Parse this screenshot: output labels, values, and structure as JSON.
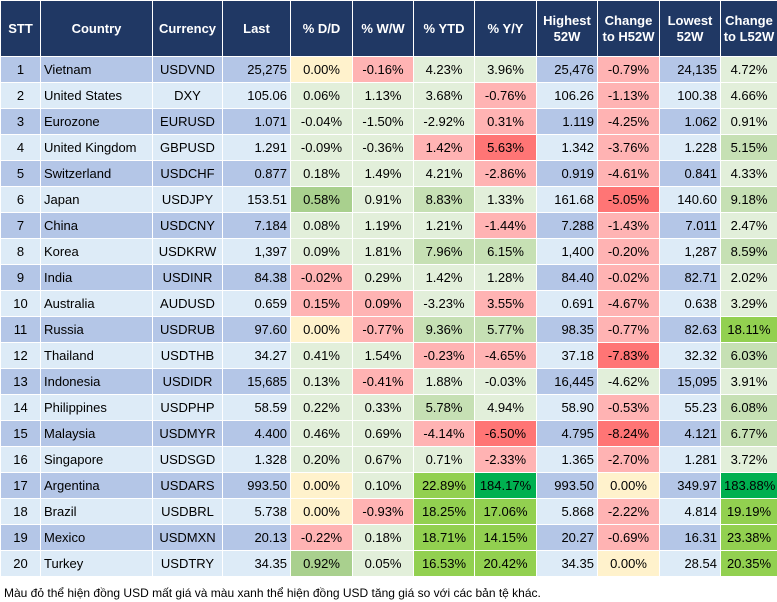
{
  "colors": {
    "header": "#203864",
    "odd_row": "#b4c6e7",
    "even_row": "#ddebf7",
    "y": "#fff2cc",
    "r": "#ffb3b3",
    "R": "#ff7575",
    "g": "#e2efda",
    "G": "#c6e0b4",
    "A": "#a9d08e",
    "B": "#92d050",
    "D": "#00b050"
  },
  "headers": [
    "STT",
    "Country",
    "Currency",
    "Last",
    "% D/D",
    "% W/W",
    "% YTD",
    "% Y/Y",
    "Highest 52W",
    "Change to H52W",
    "Lowest 52W",
    "Change to L52W"
  ],
  "rows": [
    {
      "cells": [
        "1",
        "Vietnam",
        "USDVND",
        "25,275",
        "0.00%",
        "-0.16%",
        "4.23%",
        "3.96%",
        "25,476",
        "-0.79%",
        "24,135",
        "4.72%"
      ],
      "tones": [
        "y",
        "r",
        "g",
        "g",
        "r",
        "g"
      ]
    },
    {
      "cells": [
        "2",
        "United States",
        "DXY",
        "105.06",
        "0.06%",
        "1.13%",
        "3.68%",
        "-0.76%",
        "106.26",
        "-1.13%",
        "100.38",
        "4.66%"
      ],
      "tones": [
        "g",
        "g",
        "g",
        "r",
        "r",
        "g"
      ]
    },
    {
      "cells": [
        "3",
        "Eurozone",
        "EURUSD",
        "1.071",
        "-0.04%",
        "-1.50%",
        "-2.92%",
        "0.31%",
        "1.119",
        "-4.25%",
        "1.062",
        "0.91%"
      ],
      "tones": [
        "g",
        "g",
        "g",
        "r",
        "r",
        "g"
      ]
    },
    {
      "cells": [
        "4",
        "United Kingdom",
        "GBPUSD",
        "1.291",
        "-0.09%",
        "-0.36%",
        "1.42%",
        "5.63%",
        "1.342",
        "-3.76%",
        "1.228",
        "5.15%"
      ],
      "tones": [
        "g",
        "g",
        "r",
        "R",
        "r",
        "G"
      ]
    },
    {
      "cells": [
        "5",
        "Switzerland",
        "USDCHF",
        "0.877",
        "0.18%",
        "1.49%",
        "4.21%",
        "-2.86%",
        "0.919",
        "-4.61%",
        "0.841",
        "4.33%"
      ],
      "tones": [
        "g",
        "g",
        "g",
        "r",
        "r",
        "g"
      ]
    },
    {
      "cells": [
        "6",
        "Japan",
        "USDJPY",
        "153.51",
        "0.58%",
        "0.91%",
        "8.83%",
        "1.33%",
        "161.68",
        "-5.05%",
        "140.60",
        "9.18%"
      ],
      "tones": [
        "A",
        "g",
        "G",
        "g",
        "R",
        "G"
      ]
    },
    {
      "cells": [
        "7",
        "China",
        "USDCNY",
        "7.184",
        "0.08%",
        "1.19%",
        "1.21%",
        "-1.44%",
        "7.288",
        "-1.43%",
        "7.011",
        "2.47%"
      ],
      "tones": [
        "g",
        "g",
        "g",
        "r",
        "r",
        "g"
      ]
    },
    {
      "cells": [
        "8",
        "Korea",
        "USDKRW",
        "1,397",
        "0.09%",
        "1.81%",
        "7.96%",
        "6.15%",
        "1,400",
        "-0.20%",
        "1,287",
        "8.59%"
      ],
      "tones": [
        "g",
        "g",
        "G",
        "G",
        "r",
        "G"
      ]
    },
    {
      "cells": [
        "9",
        "India",
        "USDINR",
        "84.38",
        "-0.02%",
        "0.29%",
        "1.42%",
        "1.28%",
        "84.40",
        "-0.02%",
        "82.71",
        "2.02%"
      ],
      "tones": [
        "r",
        "g",
        "g",
        "g",
        "r",
        "g"
      ]
    },
    {
      "cells": [
        "10",
        "Australia",
        "AUDUSD",
        "0.659",
        "0.15%",
        "0.09%",
        "-3.23%",
        "3.55%",
        "0.691",
        "-4.67%",
        "0.638",
        "3.29%"
      ],
      "tones": [
        "r",
        "r",
        "g",
        "r",
        "r",
        "g"
      ]
    },
    {
      "cells": [
        "11",
        "Russia",
        "USDRUB",
        "97.60",
        "0.00%",
        "-0.77%",
        "9.36%",
        "5.77%",
        "98.35",
        "-0.77%",
        "82.63",
        "18.11%"
      ],
      "tones": [
        "y",
        "r",
        "G",
        "G",
        "r",
        "B"
      ]
    },
    {
      "cells": [
        "12",
        "Thailand",
        "USDTHB",
        "34.27",
        "0.41%",
        "1.54%",
        "-0.23%",
        "-4.65%",
        "37.18",
        "-7.83%",
        "32.32",
        "6.03%"
      ],
      "tones": [
        "g",
        "g",
        "r",
        "r",
        "R",
        "G"
      ]
    },
    {
      "cells": [
        "13",
        "Indonesia",
        "USDIDR",
        "15,685",
        "0.13%",
        "-0.41%",
        "1.88%",
        "-0.03%",
        "16,445",
        "-4.62%",
        "15,095",
        "3.91%"
      ],
      "tones": [
        "g",
        "r",
        "g",
        "g",
        "g",
        "g"
      ]
    },
    {
      "cells": [
        "14",
        "Philippines",
        "USDPHP",
        "58.59",
        "0.22%",
        "0.33%",
        "5.78%",
        "4.94%",
        "58.90",
        "-0.53%",
        "55.23",
        "6.08%"
      ],
      "tones": [
        "g",
        "g",
        "G",
        "g",
        "r",
        "G"
      ]
    },
    {
      "cells": [
        "15",
        "Malaysia",
        "USDMYR",
        "4.400",
        "0.46%",
        "0.69%",
        "-4.14%",
        "-6.50%",
        "4.795",
        "-8.24%",
        "4.121",
        "6.77%"
      ],
      "tones": [
        "g",
        "g",
        "r",
        "R",
        "R",
        "G"
      ]
    },
    {
      "cells": [
        "16",
        "Singapore",
        "USDSGD",
        "1.328",
        "0.20%",
        "0.67%",
        "0.71%",
        "-2.33%",
        "1.365",
        "-2.70%",
        "1.281",
        "3.72%"
      ],
      "tones": [
        "g",
        "g",
        "g",
        "r",
        "r",
        "g"
      ]
    },
    {
      "cells": [
        "17",
        "Argentina",
        "USDARS",
        "993.50",
        "0.00%",
        "0.10%",
        "22.89%",
        "184.17%",
        "993.50",
        "0.00%",
        "349.97",
        "183.88%"
      ],
      "tones": [
        "y",
        "g",
        "B",
        "D",
        "y",
        "D"
      ]
    },
    {
      "cells": [
        "18",
        "Brazil",
        "USDBRL",
        "5.738",
        "0.00%",
        "-0.93%",
        "18.25%",
        "17.06%",
        "5.868",
        "-2.22%",
        "4.814",
        "19.19%"
      ],
      "tones": [
        "y",
        "r",
        "B",
        "B",
        "r",
        "B"
      ]
    },
    {
      "cells": [
        "19",
        "Mexico",
        "USDMXN",
        "20.13",
        "-0.22%",
        "0.18%",
        "18.71%",
        "14.15%",
        "20.27",
        "-0.69%",
        "16.31",
        "23.38%"
      ],
      "tones": [
        "r",
        "g",
        "B",
        "B",
        "r",
        "B"
      ]
    },
    {
      "cells": [
        "20",
        "Turkey",
        "USDTRY",
        "34.35",
        "0.92%",
        "0.05%",
        "16.53%",
        "20.42%",
        "34.35",
        "0.00%",
        "28.54",
        "20.35%"
      ],
      "tones": [
        "A",
        "g",
        "B",
        "B",
        "y",
        "B"
      ]
    }
  ],
  "footnote": "Màu đỏ thể hiện đồng USD mất giá và màu xanh thể hiện đồng USD tăng giá so với các bản tệ khác."
}
